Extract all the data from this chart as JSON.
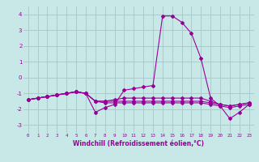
{
  "x": [
    0,
    1,
    2,
    3,
    4,
    5,
    6,
    7,
    8,
    9,
    10,
    11,
    12,
    13,
    14,
    15,
    16,
    17,
    18,
    19,
    20,
    21,
    22,
    23
  ],
  "line1": [
    -1.4,
    -1.3,
    -1.2,
    -1.1,
    -1.0,
    -0.9,
    -1.0,
    -2.2,
    -1.9,
    -1.7,
    -0.8,
    -0.7,
    -0.6,
    -0.5,
    3.9,
    3.9,
    3.5,
    2.8,
    1.2,
    -1.3,
    -1.8,
    -2.6,
    -2.2,
    -1.7
  ],
  "line2": [
    -1.4,
    -1.3,
    -1.2,
    -1.1,
    -1.0,
    -0.9,
    -1.0,
    -1.5,
    -1.5,
    -1.4,
    -1.3,
    -1.3,
    -1.3,
    -1.3,
    -1.3,
    -1.3,
    -1.3,
    -1.3,
    -1.3,
    -1.5,
    -1.7,
    -1.8,
    -1.7,
    -1.6
  ],
  "line3": [
    -1.4,
    -1.3,
    -1.2,
    -1.1,
    -1.0,
    -0.9,
    -1.0,
    -1.5,
    -1.5,
    -1.5,
    -1.5,
    -1.5,
    -1.5,
    -1.5,
    -1.5,
    -1.5,
    -1.5,
    -1.5,
    -1.5,
    -1.6,
    -1.7,
    -1.8,
    -1.7,
    -1.6
  ],
  "line4": [
    -1.4,
    -1.3,
    -1.2,
    -1.1,
    -1.0,
    -0.9,
    -1.0,
    -1.5,
    -1.6,
    -1.6,
    -1.6,
    -1.6,
    -1.6,
    -1.6,
    -1.6,
    -1.6,
    -1.6,
    -1.6,
    -1.6,
    -1.7,
    -1.8,
    -1.9,
    -1.8,
    -1.7
  ],
  "line_color": "#990099",
  "bg_color": "#c8e8e8",
  "grid_color": "#aacccc",
  "xlabel": "Windchill (Refroidissement éolien,°C)",
  "ylim": [
    -3.5,
    4.5
  ],
  "xlim": [
    -0.5,
    23.5
  ],
  "yticks": [
    -3,
    -2,
    -1,
    0,
    1,
    2,
    3,
    4
  ],
  "xticks": [
    0,
    1,
    2,
    3,
    4,
    5,
    6,
    7,
    8,
    9,
    10,
    11,
    12,
    13,
    14,
    15,
    16,
    17,
    18,
    19,
    20,
    21,
    22,
    23
  ]
}
